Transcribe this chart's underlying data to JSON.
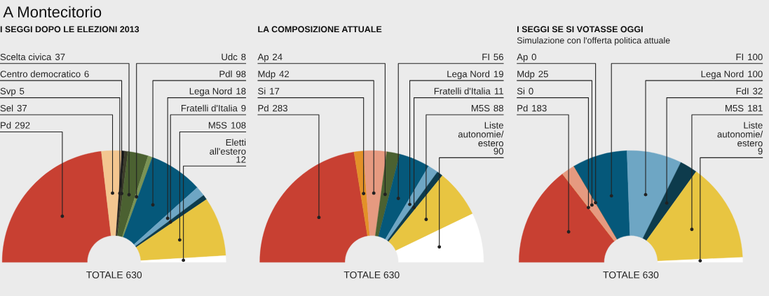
{
  "chart_data": [
    {
      "type": "donut",
      "title": "I SEGGI DOPO LE ELEZIONI 2013",
      "annotations": [
        "A Montecitorio",
        "TOTALE 630"
      ],
      "data_labels": true,
      "categories": [
        "Pd",
        "Sel",
        "Svp",
        "Centro democratico",
        "Scelta civica",
        "Udc",
        "Pdl",
        "Lega Nord",
        "Fratelli d'Italia",
        "M5S",
        "Eletti\nall'estero"
      ],
      "values": [
        292,
        37,
        5,
        6,
        37,
        8,
        98,
        18,
        9,
        108,
        12
      ],
      "colors": [
        "#c84032",
        "#f3c690",
        "#1a1a1a",
        "#3b3b2a",
        "#4b6131",
        "#7a9354",
        "#05587a",
        "#6ea6c4",
        "#0d3b4c",
        "#e8c541",
        "#ffffff"
      ]
    },
    {
      "type": "donut",
      "title": "LA COMPOSIZIONE ATTUALE",
      "annotations": [
        "TOTALE 630"
      ],
      "data_labels": true,
      "categories": [
        "Pd",
        "Si",
        "Mdp",
        "Ap",
        "FI",
        "Lega Nord",
        "Fratelli d'Italia",
        "M5S",
        "Liste\nautonomie/\nestero"
      ],
      "values": [
        283,
        17,
        42,
        24,
        56,
        19,
        11,
        88,
        90
      ],
      "colors": [
        "#c84032",
        "#e39128",
        "#e69a80",
        "#4b6131",
        "#05587a",
        "#6ea6c4",
        "#0d3b4c",
        "#e8c541",
        "#ffffff"
      ]
    },
    {
      "type": "donut",
      "title": "I SEGGI SE SI VOTASSE OGGI",
      "subtitle": "Simulazione con l'offerta politica attuale",
      "annotations": [
        "TOTALE 630"
      ],
      "value_labels": [
        "183",
        "0",
        "25",
        "0",
        "100",
        "100",
        "32",
        "181",
        "9"
      ],
      "categories": [
        "Pd",
        "Si",
        "Mdp",
        "Ap",
        "FI",
        "Lega Nord",
        "FdI",
        "M5S",
        "Liste\nautonomie/\nestero"
      ],
      "values": [
        183,
        0,
        25,
        0,
        100,
        100,
        32,
        181,
        9
      ],
      "colors": [
        "#c84032",
        "#e39128",
        "#e69a80",
        "#4b6131",
        "#05587a",
        "#6ea6c4",
        "#0d3b4c",
        "#e8c541",
        "#ffffff"
      ]
    }
  ]
}
